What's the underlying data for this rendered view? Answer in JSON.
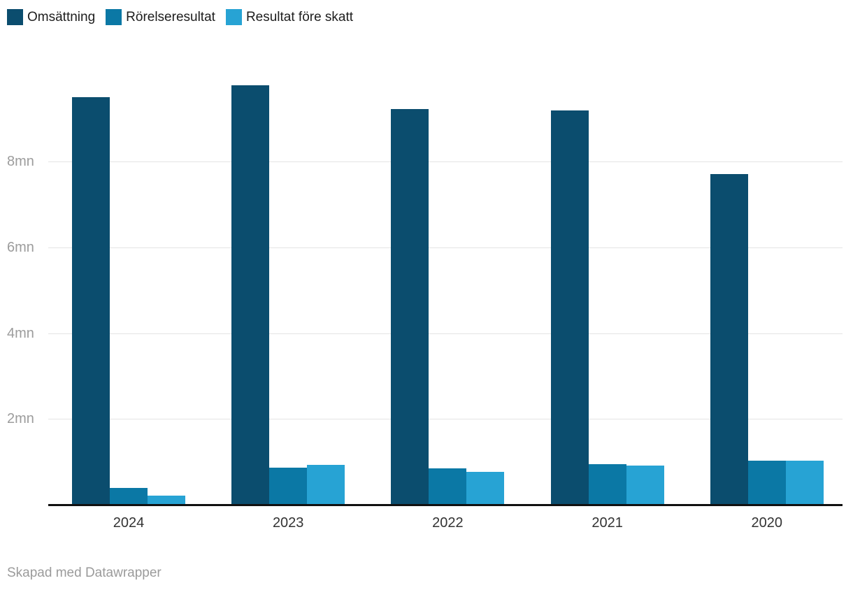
{
  "footer": {
    "text": "Skapad med Datawrapper"
  },
  "chart_data": {
    "type": "bar",
    "title": "",
    "xlabel": "",
    "ylabel": "",
    "unit": "mn",
    "categories": [
      "2024",
      "2023",
      "2022",
      "2021",
      "2020"
    ],
    "series": [
      {
        "name": "Omsättning",
        "color": "#0b4d6e",
        "values": [
          9.5,
          9.78,
          9.23,
          9.19,
          7.72
        ]
      },
      {
        "name": "Rörelseresultat",
        "color": "#0b78a5",
        "values": [
          0.4,
          0.87,
          0.85,
          0.94,
          1.02
        ]
      },
      {
        "name": "Resultat före skatt",
        "color": "#27a3d4",
        "values": [
          0.21,
          0.93,
          0.77,
          0.91,
          1.02
        ]
      }
    ],
    "yticks": [
      {
        "value": 2,
        "label": "2mn"
      },
      {
        "value": 4,
        "label": "4mn"
      },
      {
        "value": 6,
        "label": "6mn"
      },
      {
        "value": 8,
        "label": "8mn"
      }
    ],
    "ylim": [
      0,
      10.2
    ],
    "grid": true,
    "legend_position": "top-left"
  }
}
